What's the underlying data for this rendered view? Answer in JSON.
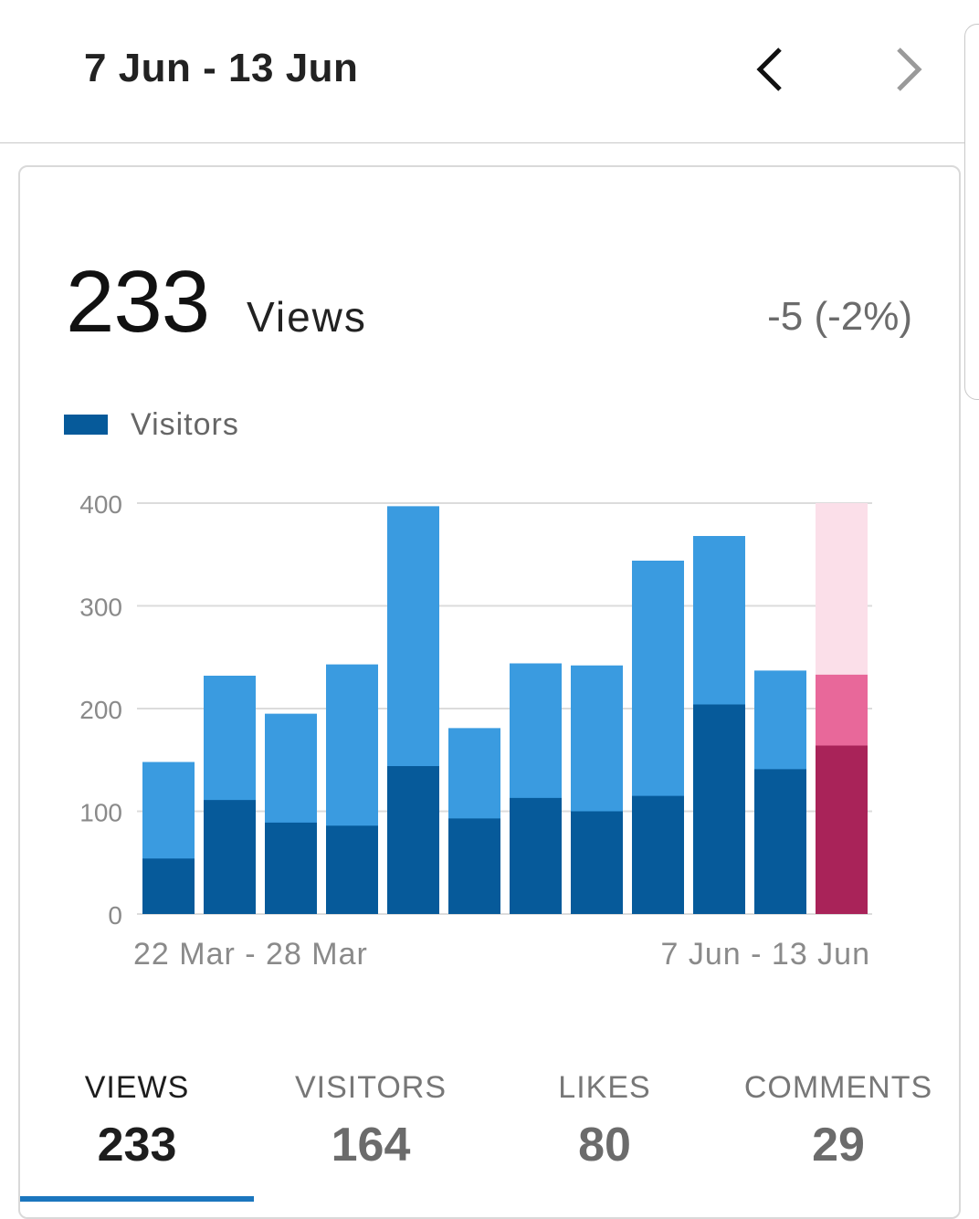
{
  "header": {
    "range_title": "7 Jun - 13 Jun",
    "prev_icon": "chevron-left-icon",
    "next_icon": "chevron-right-icon"
  },
  "summary": {
    "count": "233",
    "unit": "Views",
    "delta": "-5 (-2%)"
  },
  "legend": {
    "label": "Visitors",
    "color": "#065a9a"
  },
  "colors": {
    "views_bar": "#3a9be0",
    "visitors_bar": "#065a9a",
    "current_views": "#e8689a",
    "current_visitors": "#a92359",
    "current_highlight": "#fbdfe9",
    "grid": "#dcdcdc",
    "axis_text": "#8a8a8a",
    "tab_indicator": "#1b76be"
  },
  "chart_data": {
    "type": "bar",
    "stacked_overlay": true,
    "categories": [
      "22 Mar - 28 Mar",
      "",
      "",
      "",
      "",
      "",
      "",
      "",
      "",
      "",
      "",
      "7 Jun - 13 Jun"
    ],
    "x_tick_labels": [
      "22 Mar - 28 Mar",
      "7 Jun - 13 Jun"
    ],
    "series": [
      {
        "name": "Views",
        "values": [
          148,
          232,
          195,
          243,
          397,
          181,
          244,
          242,
          344,
          368,
          237,
          233
        ]
      },
      {
        "name": "Visitors",
        "values": [
          54,
          111,
          89,
          86,
          144,
          93,
          113,
          100,
          115,
          204,
          141,
          164
        ]
      }
    ],
    "highlight_index": 11,
    "ylim": [
      0,
      400
    ],
    "yticks": [
      0,
      100,
      200,
      300,
      400
    ],
    "grid": true,
    "legend_position": "top-left",
    "xlabel": "",
    "ylabel": ""
  },
  "tabs": [
    {
      "label": "VIEWS",
      "value": "233",
      "active": true
    },
    {
      "label": "VISITORS",
      "value": "164",
      "active": false
    },
    {
      "label": "LIKES",
      "value": "80",
      "active": false
    },
    {
      "label": "COMMENTS",
      "value": "29",
      "active": false
    }
  ]
}
